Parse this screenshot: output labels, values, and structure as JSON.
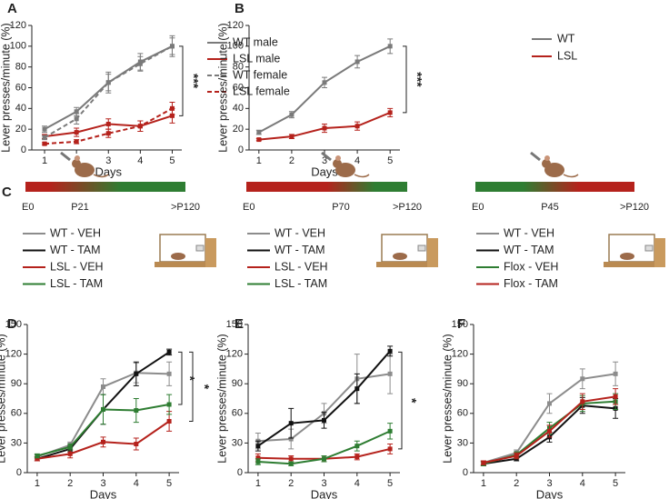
{
  "chart_data": [
    {
      "type": "line",
      "label": "A",
      "ylabel": "Lever presses/minute (%)",
      "xlabel": "Days",
      "x": [
        1,
        2,
        3,
        4,
        5
      ],
      "xlim": [
        0.6,
        5.3
      ],
      "xticks": [
        1,
        2,
        3,
        4,
        5
      ],
      "ylim": [
        0,
        120
      ],
      "yticks": [
        0,
        20,
        40,
        60,
        80,
        100,
        120
      ],
      "legend": "right",
      "annotations": [
        "***"
      ],
      "series": [
        {
          "name": "WT male",
          "color": "#7a7a7a",
          "dashed": false,
          "values": [
            20,
            37,
            65,
            85,
            100
          ],
          "errors": [
            3,
            4,
            10,
            8,
            10
          ]
        },
        {
          "name": "LSL male",
          "color": "#b5221c",
          "dashed": false,
          "values": [
            13,
            17,
            25,
            23,
            33
          ],
          "errors": [
            2,
            4,
            5,
            5,
            7
          ]
        },
        {
          "name": "WT female",
          "color": "#7a7a7a",
          "dashed": true,
          "values": [
            12,
            30,
            65,
            83,
            100
          ],
          "errors": [
            2,
            5,
            8,
            7,
            8
          ]
        },
        {
          "name": "LSL female",
          "color": "#b5221c",
          "dashed": true,
          "values": [
            6,
            8,
            16,
            23,
            40
          ],
          "errors": [
            1,
            2,
            4,
            5,
            6
          ]
        }
      ]
    },
    {
      "type": "line",
      "label": "B",
      "ylabel": "Lever presses/minute (%)",
      "xlabel": "Days",
      "x": [
        1,
        2,
        3,
        4,
        5
      ],
      "xlim": [
        0.7,
        5.3
      ],
      "xticks": [
        1,
        2,
        3,
        4,
        5
      ],
      "ylim": [
        0,
        120
      ],
      "yticks": [
        0,
        20,
        40,
        60,
        80,
        100,
        120
      ],
      "legend": "right",
      "annotations": [
        "***"
      ],
      "series": [
        {
          "name": "WT",
          "color": "#7a7a7a",
          "dashed": false,
          "values": [
            17,
            34,
            65,
            85,
            100
          ],
          "errors": [
            2,
            3,
            5,
            6,
            7
          ]
        },
        {
          "name": "LSL",
          "color": "#b5221c",
          "dashed": false,
          "values": [
            10,
            13,
            21,
            23,
            36
          ],
          "errors": [
            1,
            2,
            4,
            4,
            4
          ]
        }
      ]
    },
    {
      "type": "line",
      "label": "D",
      "ylabel": "Lever presses/minute (%)",
      "xlabel": "Days",
      "x": [
        1,
        2,
        3,
        4,
        5
      ],
      "xlim": [
        0.7,
        5.3
      ],
      "xticks": [
        1,
        2,
        3,
        4,
        5
      ],
      "ylim": [
        0,
        150
      ],
      "yticks": [
        0,
        30,
        60,
        90,
        120,
        150
      ],
      "legend": "panel C",
      "annotations": [
        "*",
        "*"
      ],
      "series": [
        {
          "name": "WT - VEH",
          "color": "#8c8c8c",
          "dashed": false,
          "values": [
            16,
            28,
            87,
            101,
            100
          ],
          "errors": [
            2,
            3,
            8,
            10,
            12
          ]
        },
        {
          "name": "WT - TAM",
          "color": "#111111",
          "dashed": false,
          "values": [
            14,
            24,
            64,
            100,
            122
          ],
          "errors": [
            2,
            3,
            15,
            12,
            3
          ]
        },
        {
          "name": "LSL - VEH",
          "color": "#b5221c",
          "dashed": false,
          "values": [
            14,
            19,
            31,
            29,
            52
          ],
          "errors": [
            2,
            4,
            5,
            6,
            10
          ]
        },
        {
          "name": "LSL - TAM",
          "color": "#2e7d32",
          "dashed": false,
          "values": [
            17,
            26,
            64,
            63,
            69
          ],
          "errors": [
            2,
            3,
            15,
            12,
            10
          ]
        }
      ]
    },
    {
      "type": "line",
      "label": "E",
      "ylabel": "Lever presses/minute (%)",
      "xlabel": "Days",
      "x": [
        1,
        2,
        3,
        4,
        5
      ],
      "xlim": [
        0.7,
        5.3
      ],
      "xticks": [
        1,
        2,
        3,
        4,
        5
      ],
      "ylim": [
        0,
        150
      ],
      "yticks": [
        0,
        30,
        60,
        90,
        120,
        150
      ],
      "legend": "panel C",
      "annotations": [
        "*"
      ],
      "series": [
        {
          "name": "WT - VEH",
          "color": "#8c8c8c",
          "dashed": false,
          "values": [
            32,
            34,
            60,
            95,
            100
          ],
          "errors": [
            8,
            10,
            10,
            25,
            20
          ]
        },
        {
          "name": "WT - TAM",
          "color": "#111111",
          "dashed": false,
          "values": [
            27,
            50,
            53,
            85,
            123
          ],
          "errors": [
            5,
            15,
            8,
            15,
            5
          ]
        },
        {
          "name": "LSL - VEH",
          "color": "#b5221c",
          "dashed": false,
          "values": [
            15,
            14,
            14,
            16,
            24
          ],
          "errors": [
            4,
            3,
            3,
            3,
            5
          ]
        },
        {
          "name": "LSL - TAM",
          "color": "#2e7d32",
          "dashed": false,
          "values": [
            11,
            9,
            14,
            27,
            42
          ],
          "errors": [
            3,
            2,
            3,
            5,
            8
          ]
        }
      ]
    },
    {
      "type": "line",
      "label": "F",
      "ylabel": "Lever presses/minute (%)",
      "xlabel": "Days",
      "x": [
        1,
        2,
        3,
        4,
        5
      ],
      "xlim": [
        0.7,
        5.3
      ],
      "xticks": [
        1,
        2,
        3,
        4,
        5
      ],
      "ylim": [
        0,
        150
      ],
      "yticks": [
        0,
        30,
        60,
        90,
        120,
        150
      ],
      "legend": "panel C",
      "series": [
        {
          "name": "WT - VEH",
          "color": "#8c8c8c",
          "dashed": false,
          "values": [
            10,
            20,
            70,
            95,
            100
          ],
          "errors": [
            2,
            3,
            10,
            10,
            12
          ]
        },
        {
          "name": "WT - TAM",
          "color": "#111111",
          "dashed": false,
          "values": [
            9,
            14,
            36,
            68,
            65
          ],
          "errors": [
            2,
            2,
            5,
            8,
            10
          ]
        },
        {
          "name": "Flox - VEH",
          "color": "#2e7d32",
          "dashed": false,
          "values": [
            9,
            18,
            45,
            70,
            72
          ],
          "errors": [
            2,
            3,
            6,
            8,
            8
          ]
        },
        {
          "name": "Flox - TAM",
          "color": "#b5221c",
          "dashed": false,
          "values": [
            10,
            17,
            42,
            72,
            77
          ],
          "errors": [
            2,
            3,
            6,
            8,
            8
          ]
        }
      ]
    }
  ],
  "panel_c": {
    "label": "C",
    "timelines": [
      {
        "start": "E0",
        "mid": "P21",
        "end": ">P120"
      },
      {
        "start": "E0",
        "mid": "P70",
        "end": ">P120"
      },
      {
        "start": "E0",
        "mid": "P45",
        "end": ">P120"
      }
    ]
  }
}
